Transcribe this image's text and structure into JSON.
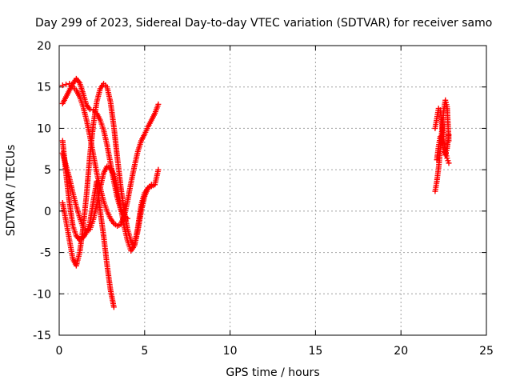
{
  "chart_data": {
    "type": "scatter",
    "title": "Day 299 of 2023, Sidereal Day-to-day VTEC variation (SDTVAR) for receiver samo",
    "xlabel": "GPS time / hours",
    "ylabel": "SDTVAR / TECUs",
    "xlim": [
      0,
      25
    ],
    "ylim": [
      -15,
      20
    ],
    "x_ticks": [
      0,
      5,
      10,
      15,
      20,
      25
    ],
    "y_ticks": [
      -15,
      -10,
      -5,
      0,
      5,
      10,
      15,
      20
    ],
    "grid": true,
    "marker": "plus",
    "color": "#ff0000",
    "series": [
      {
        "x": [
          0.2,
          0.4,
          0.6,
          0.8,
          1.0,
          1.2,
          1.4,
          1.6,
          1.8,
          2.0,
          2.2,
          2.4,
          2.6,
          2.8,
          3.0,
          3.2,
          3.4,
          3.6,
          3.8,
          4.0,
          4.2,
          4.4,
          4.6,
          4.8,
          5.0,
          5.2,
          5.4,
          5.6,
          5.8
        ],
        "y": [
          15.2,
          15.3,
          15.4,
          15.0,
          14.6,
          13.8,
          12.6,
          11.0,
          9.0,
          6.8,
          4.6,
          2.8,
          1.2,
          0.0,
          -0.9,
          -1.5,
          -1.8,
          -1.6,
          -0.6,
          1.2,
          3.4,
          5.4,
          7.2,
          8.5,
          9.3,
          10.2,
          11.0,
          11.8,
          12.9
        ]
      },
      {
        "x": [
          0.2,
          0.4,
          0.6,
          0.8,
          1.0,
          1.2,
          1.4,
          1.6,
          1.8,
          2.0,
          2.2,
          2.4,
          2.6,
          2.8,
          3.0,
          3.2,
          3.4,
          3.6,
          3.8,
          4.0
        ],
        "y": [
          13.0,
          13.8,
          14.6,
          15.4,
          16.0,
          15.5,
          14.2,
          12.8,
          12.3,
          12.2,
          11.8,
          11.0,
          9.8,
          8.0,
          5.8,
          3.6,
          1.6,
          0.2,
          -0.6,
          -0.9
        ]
      },
      {
        "x": [
          0.2,
          0.4,
          0.6,
          0.8,
          1.0,
          1.2,
          1.4,
          1.6,
          1.8,
          2.0,
          2.2,
          2.4,
          2.6,
          2.8,
          3.0,
          3.2
        ],
        "y": [
          8.5,
          4.5,
          1.0,
          -1.8,
          -3.0,
          -3.5,
          -3.2,
          -2.6,
          -1.4,
          1.2,
          3.6,
          0.0,
          -3.0,
          -6.5,
          -9.5,
          -11.6
        ]
      },
      {
        "x": [
          0.2,
          0.4,
          0.6,
          0.8,
          1.0,
          1.2,
          1.4,
          1.6,
          1.8,
          2.0,
          2.2,
          2.4,
          2.6,
          2.8,
          3.0,
          3.2,
          3.4,
          3.6,
          3.8,
          4.0,
          4.2,
          4.4,
          4.6,
          4.8,
          5.0,
          5.2,
          5.4
        ],
        "y": [
          1.0,
          -1.2,
          -3.5,
          -5.8,
          -6.6,
          -5.0,
          -2.0,
          2.0,
          6.8,
          10.5,
          13.2,
          14.8,
          15.4,
          15.0,
          13.2,
          10.2,
          6.5,
          3.0,
          0.0,
          -2.2,
          -3.6,
          -4.2,
          -2.4,
          0.0,
          1.8,
          2.8,
          3.2
        ]
      },
      {
        "x": [
          0.2,
          0.4,
          0.6,
          0.8,
          1.0,
          1.2,
          1.4,
          1.6,
          1.8,
          2.0,
          2.2,
          2.4,
          2.6,
          2.8,
          3.0,
          3.2,
          3.4,
          3.6,
          3.8,
          4.0,
          4.2,
          4.4,
          4.6,
          4.8,
          5.0,
          5.2,
          5.4,
          5.6,
          5.8
        ],
        "y": [
          7.0,
          5.5,
          4.0,
          2.2,
          0.6,
          -0.8,
          -2.0,
          -2.4,
          -2.2,
          -1.0,
          0.8,
          2.8,
          4.6,
          5.4,
          5.2,
          4.4,
          2.6,
          0.4,
          -1.8,
          -3.6,
          -4.8,
          -4.2,
          -2.0,
          0.8,
          2.2,
          2.8,
          3.0,
          3.2,
          5.0
        ]
      },
      {
        "x": [
          22.0,
          22.1,
          22.2,
          22.3,
          22.4,
          22.5,
          22.6,
          22.7,
          22.8
        ],
        "y": [
          2.4,
          3.6,
          5.2,
          7.4,
          9.8,
          12.2,
          13.4,
          12.6,
          8.5
        ]
      },
      {
        "x": [
          22.0,
          22.1,
          22.2,
          22.3,
          22.4,
          22.5,
          22.6,
          22.7,
          22.8
        ],
        "y": [
          10.0,
          11.2,
          12.4,
          12.2,
          10.6,
          8.6,
          7.2,
          6.4,
          5.8
        ]
      },
      {
        "x": [
          22.1,
          22.2,
          22.3,
          22.4,
          22.5,
          22.6,
          22.7,
          22.8
        ],
        "y": [
          6.2,
          7.8,
          9.0,
          8.4,
          7.4,
          6.8,
          7.6,
          9.2
        ]
      }
    ]
  }
}
